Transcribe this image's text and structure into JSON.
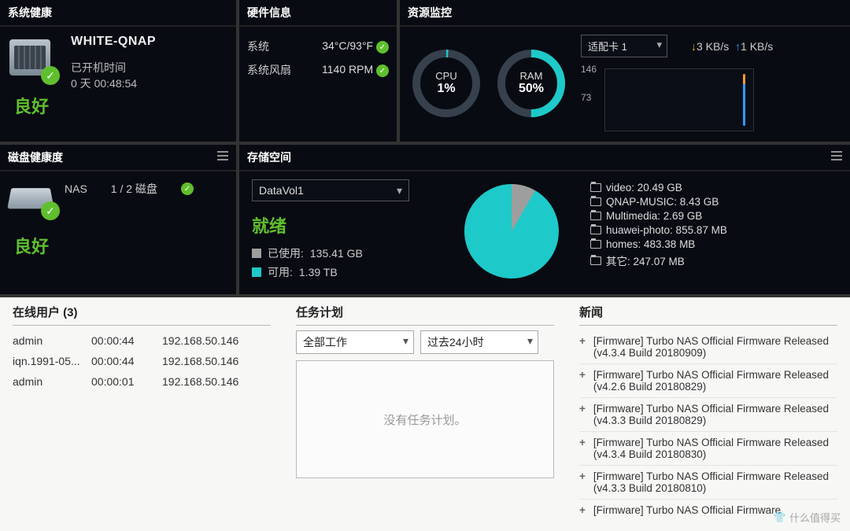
{
  "sysHealth": {
    "title": "系统健康",
    "hostname": "WHITE-QNAP",
    "uptimeLabel": "已开机时间",
    "uptime": "0 天 00:48:54",
    "status": "良好"
  },
  "hw": {
    "title": "硬件信息",
    "rows": [
      {
        "label": "系统",
        "value": "34°C/93°F"
      },
      {
        "label": "系统风扇",
        "value": "1140 RPM"
      }
    ]
  },
  "resMon": {
    "title": "资源监控",
    "cpu": {
      "label": "CPU",
      "pct": 1,
      "text": "1%",
      "color": "#1ec9c9",
      "track": "#36414d"
    },
    "ram": {
      "label": "RAM",
      "pct": 50,
      "text": "50%",
      "color": "#1ec9c9",
      "track": "#36414d"
    },
    "adapter": "适配卡 1",
    "down": "3 KB/s",
    "up": "1 KB/s",
    "yticks": [
      "146",
      "73"
    ]
  },
  "diskHealth": {
    "title": "磁盘健康度",
    "name": "NAS",
    "count": "1 / 2 磁盘",
    "status": "良好"
  },
  "storage": {
    "title": "存储空间",
    "volume": "DataVol1",
    "ready": "就绪",
    "used": {
      "label": "已使用:",
      "value": "135.41 GB",
      "color": "#9e9e9e"
    },
    "free": {
      "label": "可用:",
      "value": "1.39 TB",
      "color": "#1ec9c9"
    },
    "pieUsedDeg": 30,
    "folders": [
      "video: 20.49 GB",
      "QNAP-MUSIC: 8.43 GB",
      "Multimedia: 2.69 GB",
      "huawei-photo: 855.87 MB",
      "homes: 483.38 MB",
      "其它: 247.07 MB"
    ]
  },
  "online": {
    "title": "在线用户 (3)",
    "rows": [
      {
        "user": "admin",
        "time": "00:00:44",
        "ip": "192.168.50.146"
      },
      {
        "user": "iqn.1991-05...",
        "time": "00:00:44",
        "ip": "192.168.50.146"
      },
      {
        "user": "admin",
        "time": "00:00:01",
        "ip": "192.168.50.146"
      }
    ]
  },
  "tasks": {
    "title": "任务计划",
    "filter1": "全部工作",
    "filter2": "过去24小时",
    "empty": "没有任务计划。"
  },
  "news": {
    "title": "新闻",
    "items": [
      "[Firmware] Turbo NAS Official Firmware Released (v4.3.4 Build 20180909)",
      "[Firmware] Turbo NAS Official Firmware Released (v4.2.6 Build 20180829)",
      "[Firmware] Turbo NAS Official Firmware Released (v4.3.3 Build 20180829)",
      "[Firmware] Turbo NAS Official Firmware Released (v4.3.4 Build 20180830)",
      "[Firmware] Turbo NAS Official Firmware Released (v4.3.3 Build 20180810)",
      "[Firmware] Turbo NAS Official Firmware"
    ]
  },
  "watermark": "什么值得买"
}
